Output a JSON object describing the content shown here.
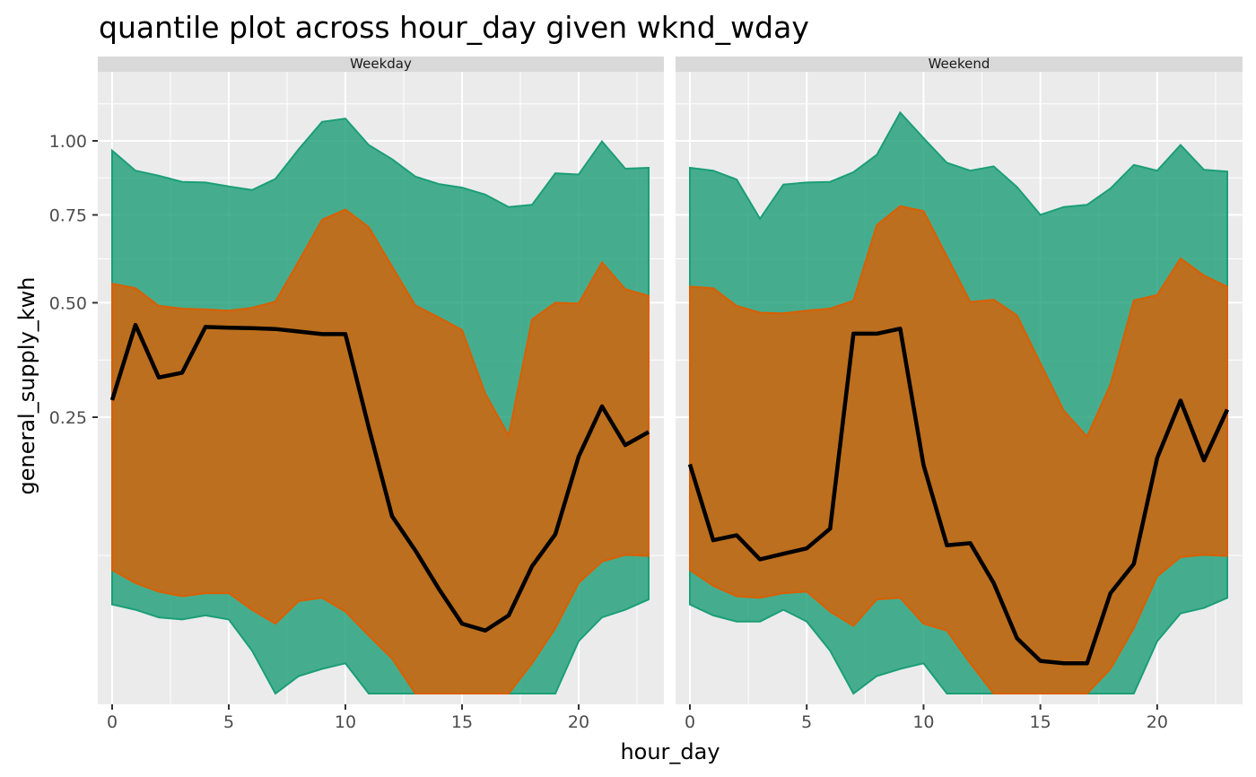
{
  "chart_data": {
    "type": "area",
    "title": "quantile plot across hour_day given wknd_wday",
    "xlabel": "hour_day",
    "ylabel": "general_supply_kwh",
    "y_scale": "sqrt",
    "xlim": [
      0,
      23
    ],
    "x_ticks": [
      0,
      5,
      10,
      15,
      20
    ],
    "x_tick_labels": [
      "0",
      "5",
      "10",
      "15",
      "20"
    ],
    "y_ticks": [
      0.25,
      0.5,
      0.75,
      1.0
    ],
    "y_tick_labels": [
      "0.25",
      "0.50",
      "0.75",
      "1.00"
    ],
    "colors": {
      "outer_band": "#1b9e77",
      "inner_band": "#d95f02",
      "median": "#000000",
      "panel_bg": "#ebebeb",
      "strip_bg": "#d9d9d9",
      "grid": "#ffffff"
    },
    "x": [
      0,
      1,
      2,
      3,
      4,
      5,
      6,
      7,
      8,
      9,
      10,
      11,
      12,
      13,
      14,
      15,
      16,
      17,
      18,
      19,
      20,
      21,
      22,
      23
    ],
    "panels": [
      {
        "label": "Weekday",
        "outer_upper": [
          0.965,
          0.895,
          0.878,
          0.857,
          0.855,
          0.842,
          0.83,
          0.867,
          0.97,
          1.07,
          1.082,
          0.985,
          0.935,
          0.875,
          0.85,
          0.838,
          0.815,
          0.775,
          0.782,
          0.886,
          0.882,
          0.998,
          0.902,
          0.905
        ],
        "inner_upper": [
          0.55,
          0.538,
          0.492,
          0.485,
          0.483,
          0.48,
          0.487,
          0.503,
          0.612,
          0.735,
          0.767,
          0.712,
          0.597,
          0.493,
          0.463,
          0.433,
          0.294,
          0.218,
          0.458,
          0.5,
          0.498,
          0.609,
          0.535,
          0.518
        ],
        "median": [
          0.282,
          0.445,
          0.327,
          0.337,
          0.44,
          0.438,
          0.437,
          0.435,
          0.429,
          0.423,
          0.423,
          0.232,
          0.103,
          0.067,
          0.036,
          0.016,
          0.013,
          0.02,
          0.053,
          0.083,
          0.184,
          0.27,
          0.202,
          0.224
        ],
        "inner_lower": [
          0.05,
          0.04,
          0.034,
          0.031,
          0.033,
          0.033,
          0.023,
          0.016,
          0.028,
          0.03,
          0.022,
          0.011,
          0.004,
          0.0,
          0.0,
          0.0,
          0.0,
          0.0,
          0.003,
          0.014,
          0.04,
          0.057,
          0.063,
          0.062
        ],
        "outer_lower": [
          0.026,
          0.023,
          0.019,
          0.018,
          0.02,
          0.018,
          0.006,
          0.0,
          0.001,
          0.002,
          0.003,
          0.0,
          0.0,
          0.0,
          0.0,
          0.0,
          0.0,
          0.0,
          0.0,
          0.0,
          0.009,
          0.019,
          0.023,
          0.029
        ]
      },
      {
        "label": "Weekend",
        "outer_upper": [
          0.905,
          0.895,
          0.865,
          0.738,
          0.848,
          0.855,
          0.857,
          0.89,
          0.95,
          1.105,
          1.01,
          0.922,
          0.895,
          0.91,
          0.84,
          0.75,
          0.775,
          0.782,
          0.835,
          0.915,
          0.895,
          0.985,
          0.898,
          0.892
        ],
        "inner_upper": [
          0.542,
          0.538,
          0.492,
          0.475,
          0.473,
          0.48,
          0.485,
          0.505,
          0.718,
          0.778,
          0.762,
          0.625,
          0.502,
          0.508,
          0.468,
          0.357,
          0.262,
          0.216,
          0.313,
          0.506,
          0.52,
          0.62,
          0.572,
          0.542
        ],
        "median": [
          0.172,
          0.077,
          0.082,
          0.059,
          0.064,
          0.069,
          0.089,
          0.424,
          0.424,
          0.436,
          0.171,
          0.072,
          0.074,
          0.04,
          0.01,
          0.0035,
          0.003,
          0.003,
          0.033,
          0.055,
          0.182,
          0.281,
          0.178,
          0.264
        ],
        "inner_lower": [
          0.05,
          0.038,
          0.031,
          0.03,
          0.033,
          0.034,
          0.022,
          0.015,
          0.029,
          0.03,
          0.016,
          0.013,
          0.003,
          0.0,
          0.0,
          0.0,
          0.0,
          0.0,
          0.002,
          0.014,
          0.045,
          0.061,
          0.063,
          0.062
        ],
        "outer_lower": [
          0.026,
          0.02,
          0.017,
          0.017,
          0.023,
          0.017,
          0.006,
          0.0,
          0.001,
          0.002,
          0.003,
          0.0,
          0.0,
          0.0,
          0.0,
          0.0,
          0.0,
          0.0,
          0.0,
          0.0,
          0.009,
          0.021,
          0.024,
          0.03
        ]
      }
    ]
  }
}
